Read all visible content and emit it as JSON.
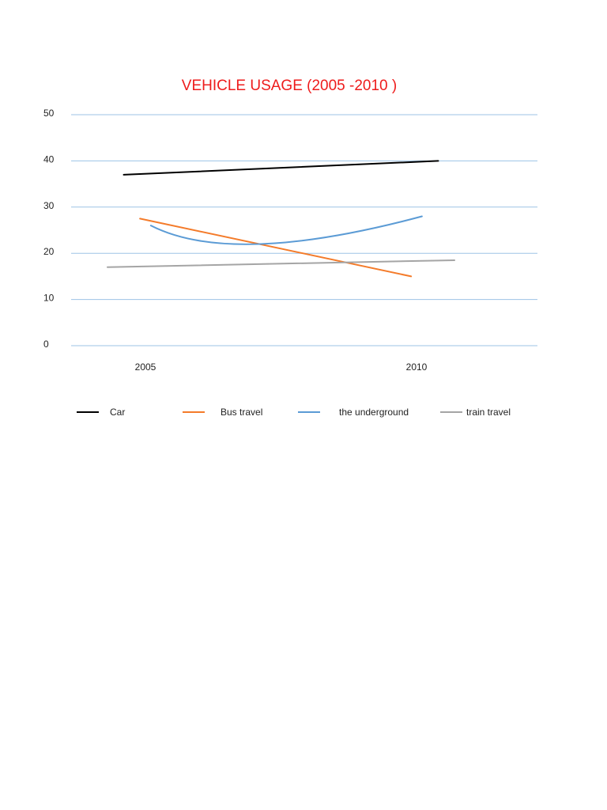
{
  "chart_data": {
    "type": "line",
    "title": "VEHICLE USAGE (2005 -2010 )",
    "xlabel": "",
    "ylabel": "",
    "x": [
      "2005",
      "2010"
    ],
    "ylim": [
      0,
      50
    ],
    "y_ticks": [
      "0",
      "10",
      "20",
      "30",
      "40",
      "50"
    ],
    "grid": true,
    "legend_position": "bottom",
    "series": [
      {
        "name": "Car",
        "color": "#000000",
        "points": [
          [
            2004.6,
            37
          ],
          [
            2010.4,
            40
          ]
        ]
      },
      {
        "name": "Bus travel",
        "color": "#f47b2a",
        "points": [
          [
            2004.9,
            27.5
          ],
          [
            2009.9,
            15
          ]
        ]
      },
      {
        "name": "the underground",
        "color": "#5b9bd5",
        "points": [
          [
            2005.1,
            26
          ],
          [
            2007.1,
            22
          ],
          [
            2010.1,
            28
          ]
        ]
      },
      {
        "name": "train travel",
        "color": "#a5a5a5",
        "points": [
          [
            2004.3,
            17
          ],
          [
            2010.7,
            18.5
          ]
        ]
      }
    ],
    "grid_color": "#9dc3e6"
  }
}
